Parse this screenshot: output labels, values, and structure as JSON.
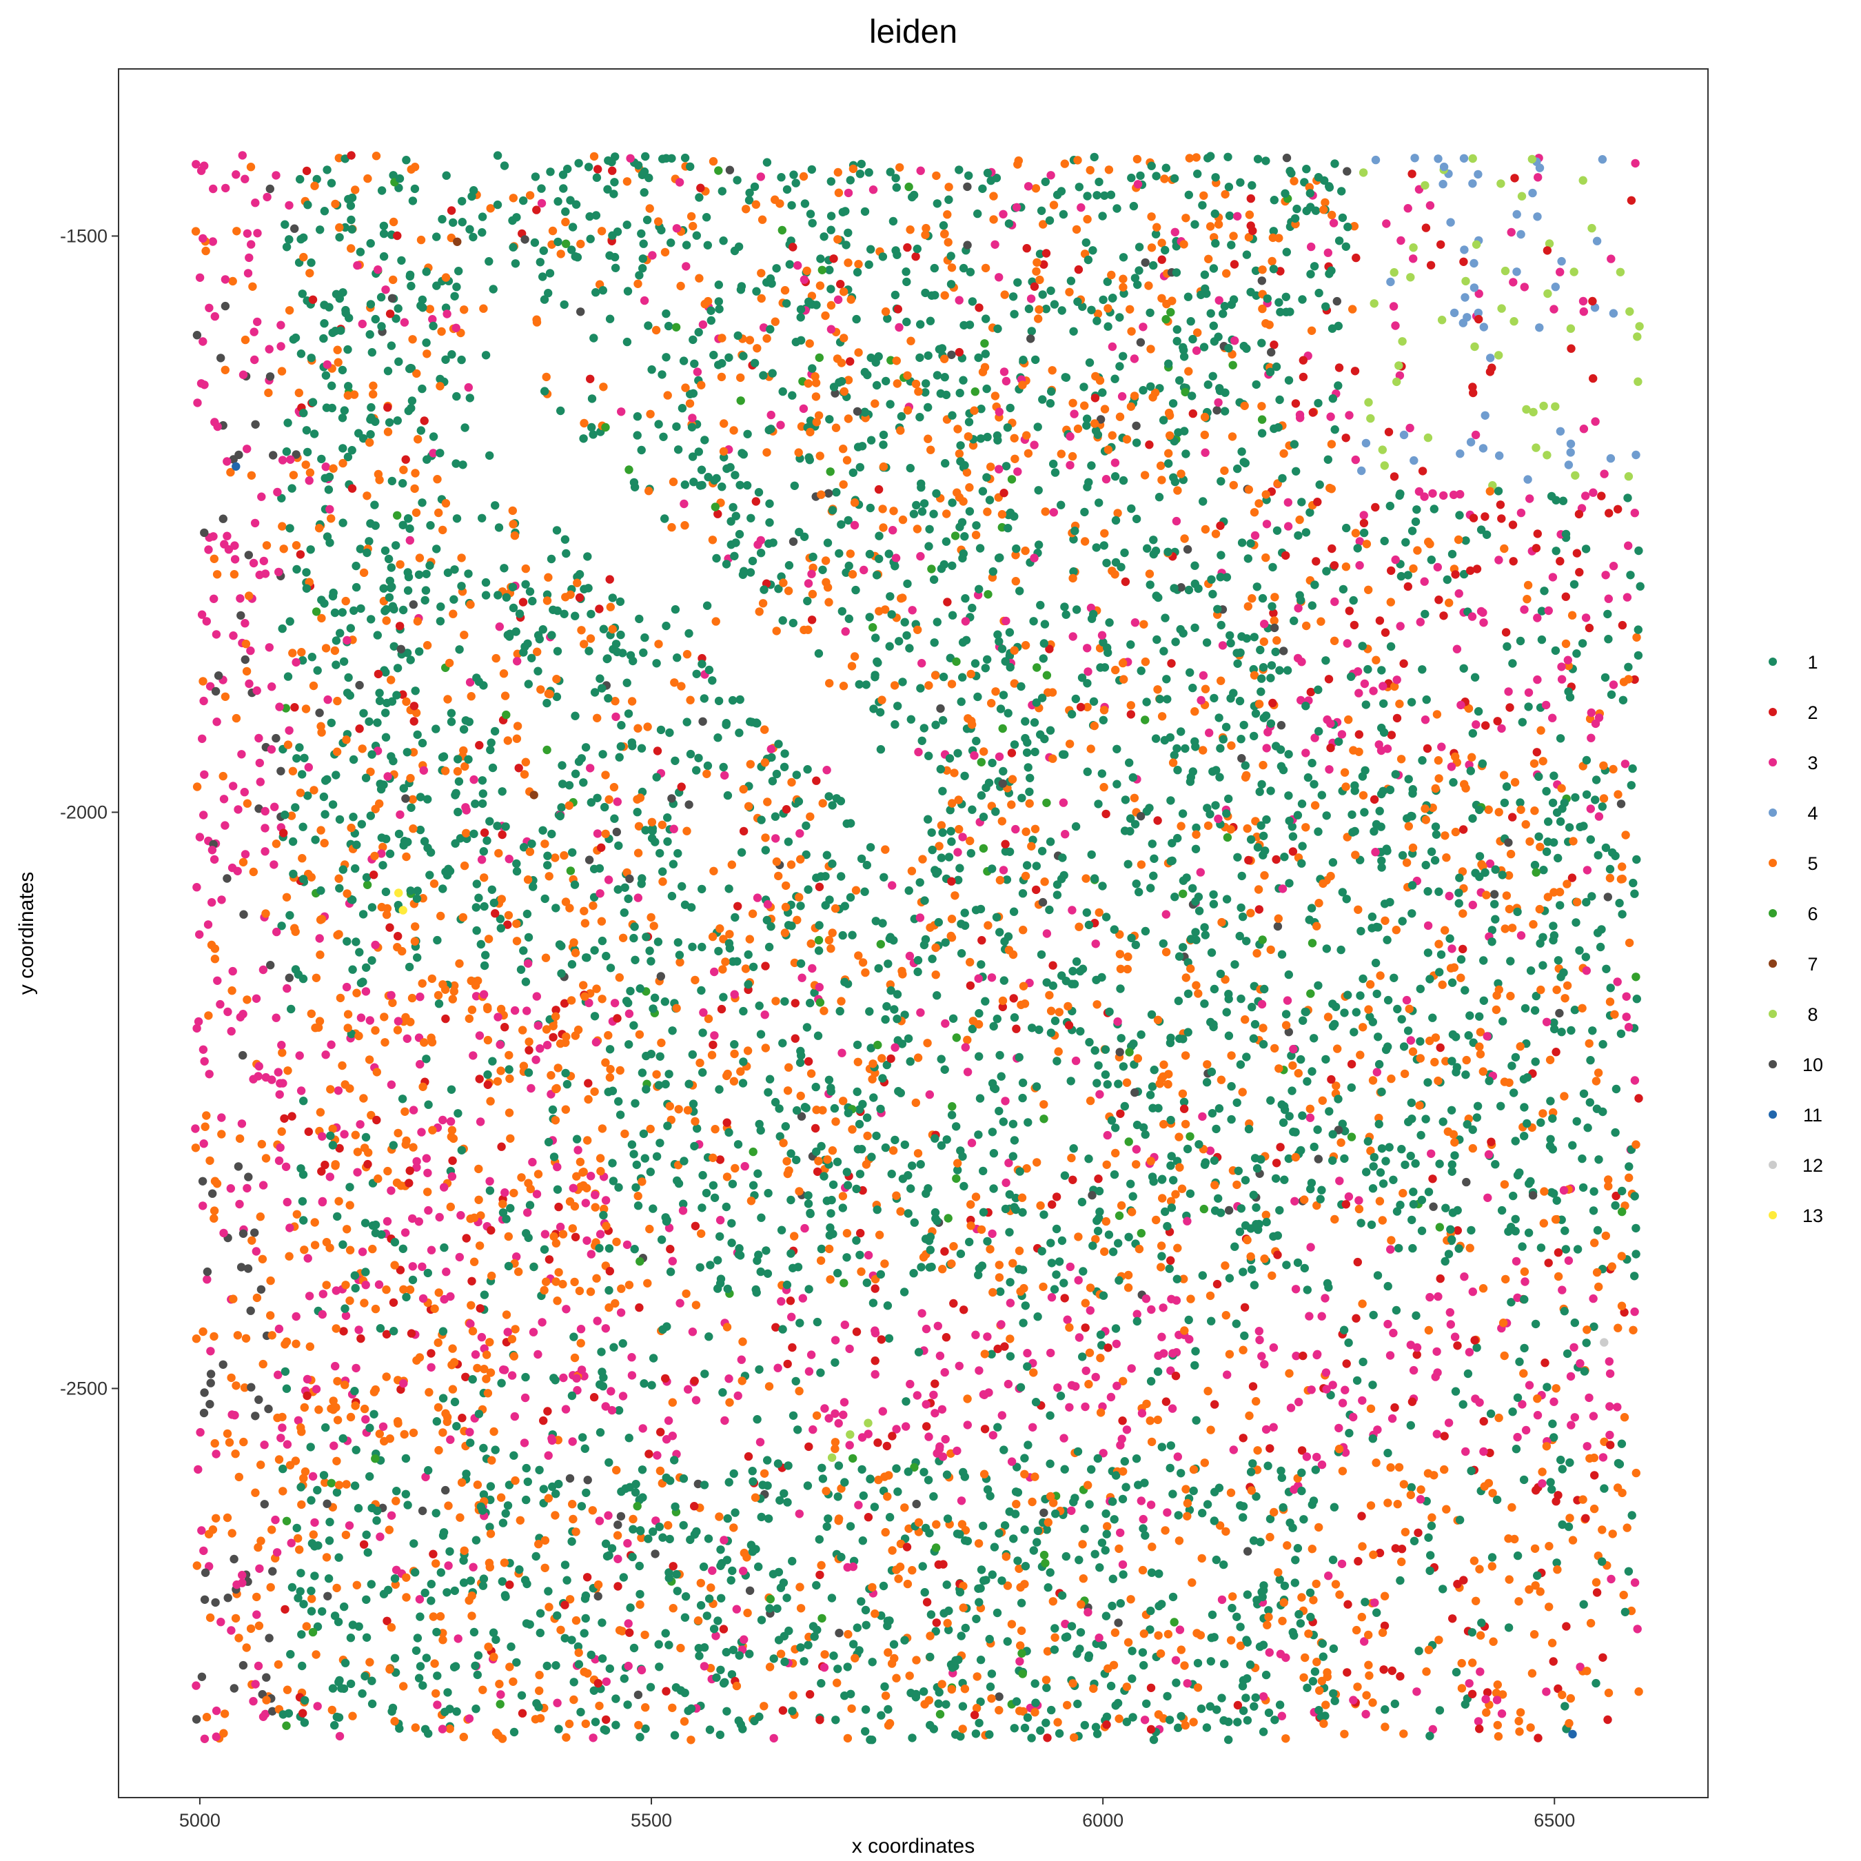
{
  "chart_data": {
    "type": "scatter",
    "title": "leiden",
    "xlabel": "x coordinates",
    "ylabel": "y coordinates",
    "xlim": [
      4910,
      6670
    ],
    "ylim": [
      -2855,
      -1355
    ],
    "xticks": [
      5000,
      5500,
      6000,
      6500
    ],
    "yticks": [
      -1500,
      -2000,
      -2500
    ],
    "grid": false,
    "legend_position": "right",
    "point_extent": {
      "x": [
        4995,
        6595
      ],
      "y": [
        -1430,
        -2805
      ]
    },
    "series": [
      {
        "name": "1",
        "color": "#1b8a62"
      },
      {
        "name": "2",
        "color": "#d7191c"
      },
      {
        "name": "3",
        "color": "#e7298a"
      },
      {
        "name": "4",
        "color": "#6f9ccf"
      },
      {
        "name": "5",
        "color": "#fd7110"
      },
      {
        "name": "6",
        "color": "#33a02c"
      },
      {
        "name": "7",
        "color": "#8c3f17"
      },
      {
        "name": "8",
        "color": "#a6d854"
      },
      {
        "name": "10",
        "color": "#4d4d4d"
      },
      {
        "name": "11",
        "color": "#2166ac"
      },
      {
        "name": "12",
        "color": "#cccccc"
      },
      {
        "name": "13",
        "color": "#ffeb3b"
      }
    ]
  }
}
